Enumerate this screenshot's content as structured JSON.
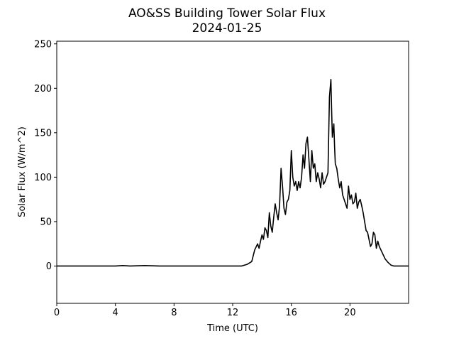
{
  "chart_data": {
    "type": "line",
    "title": "AO&SS Building Tower Solar Flux",
    "subtitle": "2024-01-25",
    "xlabel": "Time (UTC)",
    "ylabel": "Solar Flux (W/m^2)",
    "xlim": [
      0,
      24
    ],
    "ylim": [
      -42,
      253
    ],
    "xticks": [
      0,
      4,
      8,
      12,
      16,
      20
    ],
    "yticks": [
      0,
      50,
      100,
      150,
      200,
      250
    ],
    "grid": false,
    "legend": "none",
    "series": [
      {
        "color": "#000000",
        "x": [
          0,
          1,
          2,
          3,
          4,
          4.5,
          5,
          6,
          7,
          8,
          9,
          10,
          11,
          12,
          12.6,
          13.0,
          13.3,
          13.5,
          13.7,
          13.8,
          13.9,
          14.0,
          14.1,
          14.2,
          14.3,
          14.4,
          14.5,
          14.6,
          14.7,
          14.8,
          14.9,
          15.0,
          15.1,
          15.2,
          15.3,
          15.4,
          15.5,
          15.6,
          15.7,
          15.8,
          15.9,
          16.0,
          16.1,
          16.2,
          16.3,
          16.4,
          16.5,
          16.6,
          16.7,
          16.8,
          16.9,
          17.0,
          17.1,
          17.2,
          17.3,
          17.4,
          17.5,
          17.6,
          17.7,
          17.8,
          17.9,
          18.0,
          18.1,
          18.2,
          18.3,
          18.4,
          18.5,
          18.6,
          18.7,
          18.75,
          18.8,
          18.9,
          18.95,
          19.0,
          19.1,
          19.2,
          19.3,
          19.4,
          19.5,
          19.6,
          19.7,
          19.8,
          19.9,
          20.0,
          20.1,
          20.2,
          20.3,
          20.4,
          20.5,
          20.6,
          20.7,
          20.8,
          20.9,
          21.0,
          21.1,
          21.2,
          21.3,
          21.4,
          21.5,
          21.6,
          21.7,
          21.8,
          21.9,
          22.0,
          22.2,
          22.4,
          22.6,
          22.8,
          23.0,
          23.3,
          23.6,
          24.0
        ],
        "y": [
          0,
          0,
          0,
          0,
          0,
          0.5,
          0,
          0.5,
          0,
          0,
          0,
          0,
          0,
          0,
          0,
          2,
          5,
          18,
          25,
          20,
          28,
          35,
          30,
          43,
          40,
          32,
          60,
          45,
          38,
          55,
          70,
          60,
          52,
          68,
          110,
          90,
          65,
          58,
          72,
          75,
          85,
          130,
          100,
          90,
          95,
          85,
          95,
          88,
          100,
          125,
          110,
          138,
          145,
          120,
          95,
          130,
          110,
          115,
          95,
          105,
          98,
          88,
          105,
          92,
          95,
          100,
          105,
          190,
          210,
          175,
          145,
          160,
          135,
          115,
          110,
          98,
          88,
          95,
          80,
          75,
          70,
          65,
          90,
          75,
          80,
          70,
          72,
          82,
          65,
          72,
          75,
          68,
          60,
          50,
          40,
          38,
          30,
          22,
          25,
          38,
          35,
          20,
          28,
          22,
          15,
          8,
          4,
          1,
          0,
          0,
          0,
          0
        ]
      }
    ]
  }
}
